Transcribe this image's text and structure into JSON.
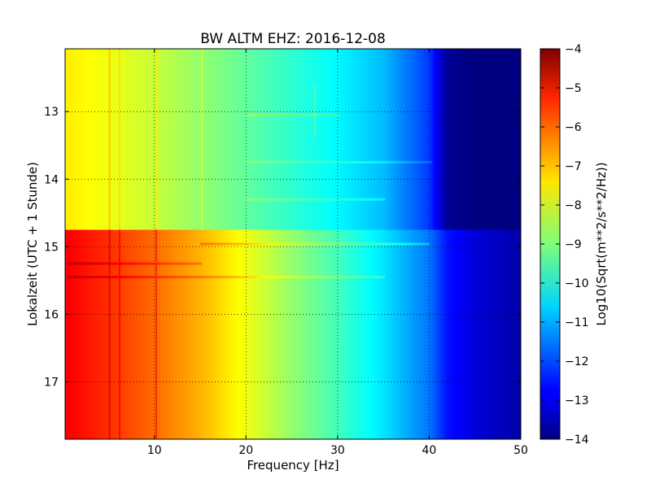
{
  "chart_data": {
    "type": "heatmap",
    "title": "BW ALTM EHZ: 2016-12-08",
    "xlabel": "Frequency [Hz]",
    "ylabel": "Lokalzeit (UTC + 1 Stunde)",
    "xlim": [
      0.25,
      50
    ],
    "ylim": [
      12.07,
      17.85
    ],
    "y_inverted": true,
    "x_ticks": [
      10,
      20,
      30,
      40,
      50
    ],
    "x_tick_labels": [
      "10",
      "20",
      "30",
      "40",
      "50"
    ],
    "y_ticks": [
      13,
      14,
      15,
      16,
      17
    ],
    "y_tick_labels": [
      "13",
      "14",
      "15",
      "16",
      "17"
    ],
    "grid": true,
    "colormap": "jet",
    "colorbar": {
      "label": "Log10(Sqrt(m**2/s**2/Hz))",
      "range": [
        -14,
        -4
      ],
      "ticks": [
        -4,
        -5,
        -6,
        -7,
        -8,
        -9,
        -10,
        -11,
        -12,
        -13,
        -14
      ],
      "tick_labels": [
        "−4",
        "−5",
        "−6",
        "−7",
        "−8",
        "−9",
        "−10",
        "−11",
        "−12",
        "−13",
        "−14"
      ]
    },
    "regions": [
      {
        "time_range": [
          12.07,
          14.75
        ],
        "frequency_hz": [
          0.5,
          5,
          10,
          15,
          20,
          25,
          30,
          35,
          40,
          42,
          45,
          50
        ],
        "log_amplitude": [
          -7.6,
          -7.9,
          -8.3,
          -8.8,
          -9.3,
          -9.8,
          -10.3,
          -10.9,
          -12.2,
          -13.8,
          -14,
          -14
        ]
      },
      {
        "time_range": [
          14.75,
          17.85
        ],
        "frequency_hz": [
          0.5,
          5,
          10,
          15,
          20,
          25,
          30,
          35,
          40,
          42,
          45,
          50
        ],
        "log_amplitude": [
          -5.2,
          -5.7,
          -6.3,
          -7.0,
          -7.9,
          -8.8,
          -9.6,
          -10.5,
          -11.6,
          -12.6,
          -13.1,
          -13.6
        ]
      }
    ],
    "lines": [
      {
        "frequency_hz": 5.1,
        "time_range": [
          12.07,
          17.85
        ],
        "offset": 0.4
      },
      {
        "frequency_hz": 6.2,
        "time_range": [
          12.07,
          17.85
        ],
        "offset": 0.3
      },
      {
        "frequency_hz": 10.2,
        "time_range": [
          12.07,
          17.85
        ],
        "offset": 0.4
      },
      {
        "frequency_hz": 15.2,
        "time_range": [
          12.07,
          14.75
        ],
        "offset": 0.3
      },
      {
        "frequency_hz": 27.5,
        "time_range": [
          12.6,
          13.4
        ],
        "offset": 0.3
      }
    ],
    "bands": [
      {
        "time": 14.96,
        "frequency_range": [
          15,
          40
        ],
        "offset": 0.35
      },
      {
        "time": 15.45,
        "frequency_range": [
          0.5,
          35
        ],
        "offset": 0.3
      },
      {
        "time": 15.25,
        "frequency_range": [
          0.5,
          15
        ],
        "offset": 0.3
      },
      {
        "time": 13.05,
        "frequency_range": [
          20,
          30
        ],
        "offset": 0.3
      },
      {
        "time": 13.75,
        "frequency_range": [
          20,
          40
        ],
        "offset": 0.25
      },
      {
        "time": 14.3,
        "frequency_range": [
          20,
          35
        ],
        "offset": 0.25
      }
    ]
  }
}
